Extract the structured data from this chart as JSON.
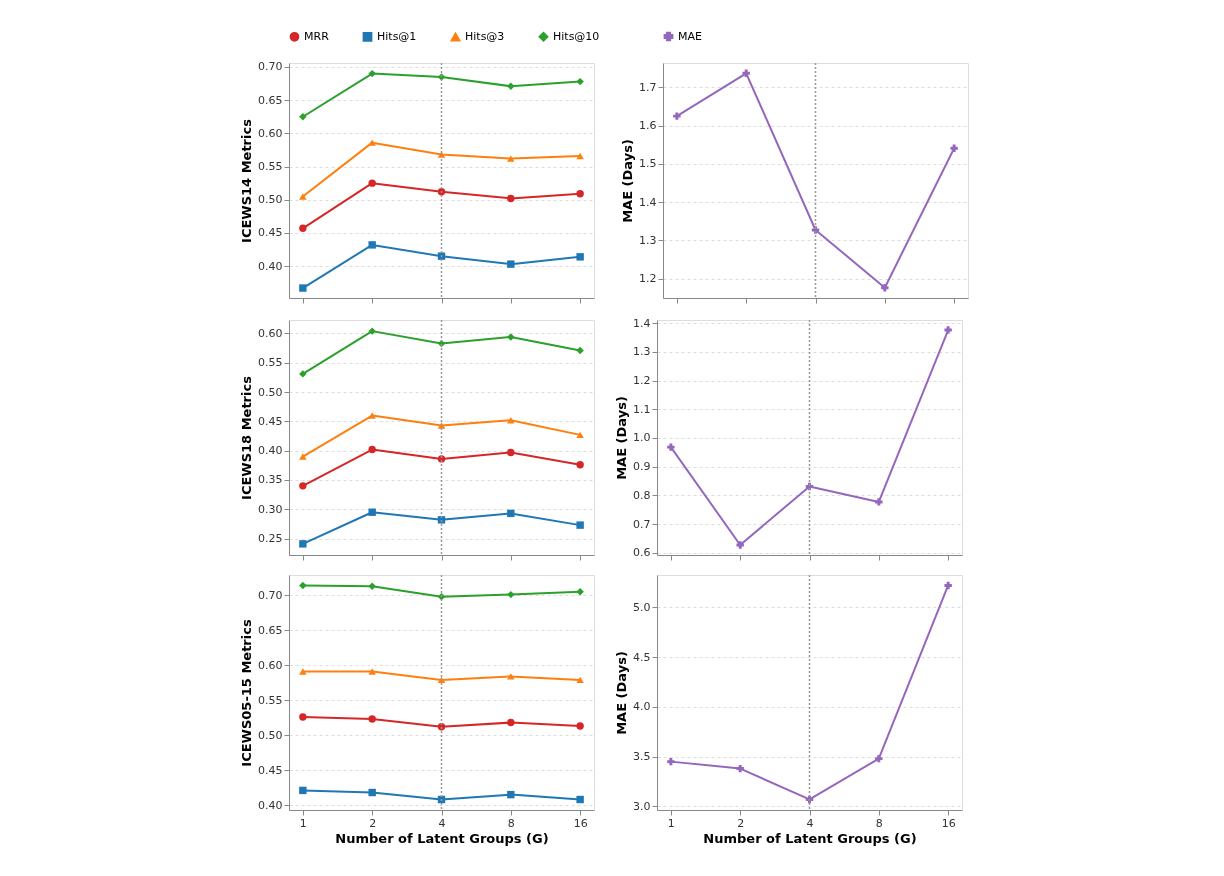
{
  "chart_data": [
    {
      "type": "line",
      "ylabel": "ICEWS14 Metrics",
      "categories": [
        "1",
        "2",
        "4",
        "8",
        "16"
      ],
      "legend": "top",
      "grid": "y",
      "tick_labels": "y",
      "ylim": [
        0.352,
        0.706
      ],
      "yticks": [
        {
          "value": 0.4,
          "label": "0.40"
        },
        {
          "value": 0.45,
          "label": "0.45"
        },
        {
          "value": 0.5,
          "label": "0.50"
        },
        {
          "value": 0.55,
          "label": "0.55"
        },
        {
          "value": 0.6,
          "label": "0.60"
        },
        {
          "value": 0.65,
          "label": "0.65"
        },
        {
          "value": 0.7,
          "label": "0.70"
        }
      ],
      "ref_lines": [
        {
          "axis": "x",
          "value": "4",
          "color": "#999999",
          "line_style": "dotted"
        }
      ],
      "series": [
        {
          "name": "MRR",
          "color": "#d62728",
          "marker": "circle",
          "values": [
            0.457,
            0.525,
            0.512,
            0.502,
            0.509
          ]
        },
        {
          "name": "Hits@1",
          "color": "#1f77b4",
          "marker": "square",
          "values": [
            0.367,
            0.432,
            0.415,
            0.403,
            0.414
          ]
        },
        {
          "name": "Hits@3",
          "color": "#ff7f0e",
          "marker": "triangle",
          "values": [
            0.505,
            0.586,
            0.568,
            0.562,
            0.566
          ]
        },
        {
          "name": "Hits@10",
          "color": "#2ca02c",
          "marker": "diamond",
          "values": [
            0.625,
            0.69,
            0.685,
            0.671,
            0.678
          ]
        }
      ]
    },
    {
      "type": "line",
      "ylabel": "MAE (Days)",
      "categories": [
        "1",
        "2",
        "4",
        "8",
        "16"
      ],
      "legend": "top",
      "grid": "y",
      "tick_labels": "y",
      "ylim": [
        1.149,
        1.764
      ],
      "yticks": [
        1.2,
        1.3,
        1.4,
        1.5,
        1.6,
        1.7
      ],
      "ref_lines": [
        {
          "axis": "x",
          "value": "4",
          "color": "#999999",
          "line_style": "dotted"
        }
      ],
      "series": [
        {
          "name": "MAE",
          "color": "#9467bd",
          "marker": "cross",
          "values": [
            1.625,
            1.737,
            1.327,
            1.176,
            1.541
          ]
        }
      ]
    },
    {
      "type": "line",
      "ylabel": "ICEWS18 Metrics",
      "categories": [
        "1",
        "2",
        "4",
        "8",
        "16"
      ],
      "grid": "y",
      "tick_labels": "y",
      "ylim": [
        0.222,
        0.623
      ],
      "yticks": [
        {
          "value": 0.25,
          "label": "0.25"
        },
        {
          "value": 0.3,
          "label": "0.30"
        },
        {
          "value": 0.35,
          "label": "0.35"
        },
        {
          "value": 0.4,
          "label": "0.40"
        },
        {
          "value": 0.45,
          "label": "0.45"
        },
        {
          "value": 0.5,
          "label": "0.50"
        },
        {
          "value": 0.55,
          "label": "0.55"
        },
        {
          "value": 0.6,
          "label": "0.60"
        }
      ],
      "ref_lines": [
        {
          "axis": "x",
          "value": "4",
          "color": "#999999",
          "line_style": "dotted"
        }
      ],
      "series": [
        {
          "color": "#d62728",
          "marker": "circle",
          "values": [
            0.34,
            0.402,
            0.386,
            0.397,
            0.376
          ]
        },
        {
          "color": "#1f77b4",
          "marker": "square",
          "values": [
            0.241,
            0.295,
            0.282,
            0.293,
            0.273
          ]
        },
        {
          "color": "#ff7f0e",
          "marker": "triangle",
          "values": [
            0.39,
            0.46,
            0.443,
            0.452,
            0.427
          ]
        },
        {
          "color": "#2ca02c",
          "marker": "diamond",
          "values": [
            0.531,
            0.604,
            0.583,
            0.594,
            0.571
          ]
        }
      ]
    },
    {
      "type": "line",
      "ylabel": "MAE (Days)",
      "categories": [
        "1",
        "2",
        "4",
        "8",
        "16"
      ],
      "grid": "y",
      "tick_labels": "y",
      "ylim": [
        0.592,
        1.411
      ],
      "yticks": [
        {
          "value": 0.6,
          "label": "0.6"
        },
        {
          "value": 0.7,
          "label": "0.7"
        },
        {
          "value": 0.8,
          "label": "0.8"
        },
        {
          "value": 0.9,
          "label": "0.9"
        },
        {
          "value": 1.0,
          "label": "1.0"
        },
        1.1,
        1.2,
        1.3,
        1.4
      ],
      "ref_lines": [
        {
          "axis": "x",
          "value": "4",
          "color": "#999999",
          "line_style": "dotted"
        }
      ],
      "series": [
        {
          "color": "#9467bd",
          "marker": "cross",
          "values": [
            0.968,
            0.627,
            0.831,
            0.777,
            1.376
          ]
        }
      ]
    },
    {
      "type": "line",
      "ylabel": "ICEWS05-15 Metrics",
      "xlabel": "Number of Latent Groups (G)",
      "categories": [
        "1",
        "2",
        "4",
        "8",
        "16"
      ],
      "grid": "y",
      "ylim": [
        0.393,
        0.729
      ],
      "yticks": [
        {
          "value": 0.4,
          "label": "0.40"
        },
        {
          "value": 0.45,
          "label": "0.45"
        },
        {
          "value": 0.5,
          "label": "0.50"
        },
        {
          "value": 0.55,
          "label": "0.55"
        },
        {
          "value": 0.6,
          "label": "0.60"
        },
        {
          "value": 0.65,
          "label": "0.65"
        },
        {
          "value": 0.7,
          "label": "0.70"
        }
      ],
      "ref_lines": [
        {
          "axis": "x",
          "value": "4",
          "color": "#999999",
          "line_style": "dotted"
        }
      ],
      "series": [
        {
          "color": "#d62728",
          "marker": "circle",
          "values": [
            0.526,
            0.523,
            0.512,
            0.518,
            0.513
          ]
        },
        {
          "color": "#1f77b4",
          "marker": "square",
          "values": [
            0.421,
            0.418,
            0.408,
            0.415,
            0.408
          ]
        },
        {
          "color": "#ff7f0e",
          "marker": "triangle",
          "values": [
            0.591,
            0.591,
            0.579,
            0.584,
            0.579
          ]
        },
        {
          "color": "#2ca02c",
          "marker": "diamond",
          "values": [
            0.714,
            0.713,
            0.698,
            0.701,
            0.705
          ]
        }
      ]
    },
    {
      "type": "line",
      "ylabel": "MAE (Days)",
      "xlabel": "Number of Latent Groups (G)",
      "categories": [
        "1",
        "2",
        "4",
        "8",
        "16"
      ],
      "grid": "y",
      "ylim": [
        2.964,
        5.325
      ],
      "yticks": [
        {
          "value": 3.0,
          "label": "3.0"
        },
        3.5,
        {
          "value": 4.0,
          "label": "4.0"
        },
        4.5,
        {
          "value": 5.0,
          "label": "5.0"
        }
      ],
      "ref_lines": [
        {
          "axis": "x",
          "value": "4",
          "color": "#999999",
          "line_style": "dotted"
        }
      ],
      "series": [
        {
          "color": "#9467bd",
          "marker": "cross",
          "values": [
            3.45,
            3.38,
            3.07,
            3.48,
            5.22
          ]
        }
      ]
    }
  ]
}
